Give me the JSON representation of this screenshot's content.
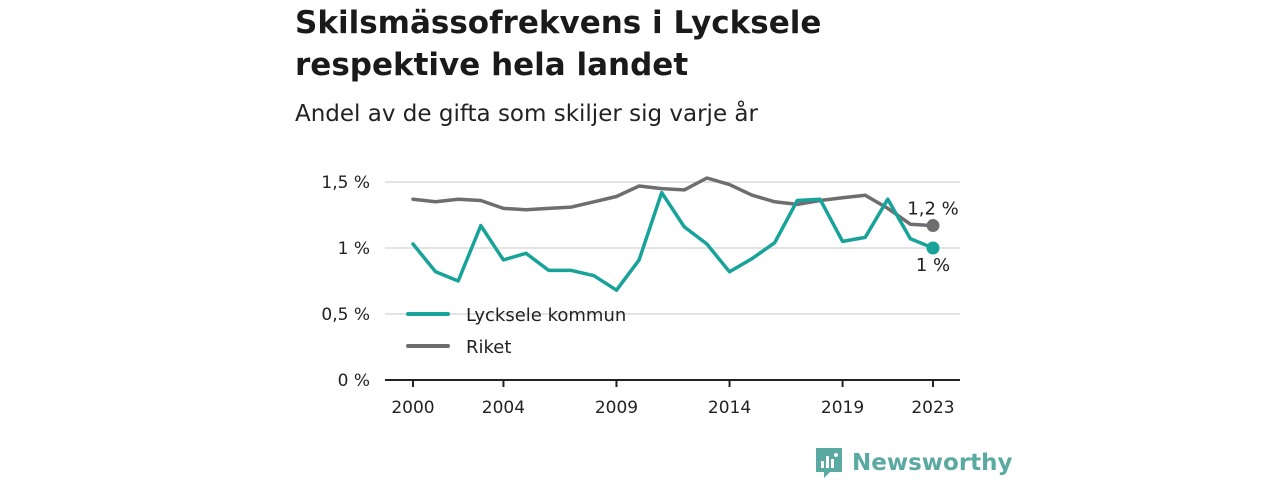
{
  "title": "Skilsmässofrekvens i Lycksele respektive hela landet",
  "subtitle": "Andel av de gifta som skiljer sig varje år",
  "brand": {
    "name": "Newsworthy",
    "icon": "newsworthy-logo-icon",
    "color": "#5aa9a3"
  },
  "chart_data": {
    "type": "line",
    "title": "Skilsmässofrekvens i Lycksele respektive hela landet",
    "subtitle": "Andel av de gifta som skiljer sig varje år",
    "x": [
      2000,
      2001,
      2002,
      2003,
      2004,
      2005,
      2006,
      2007,
      2008,
      2009,
      2010,
      2011,
      2012,
      2013,
      2014,
      2015,
      2016,
      2017,
      2018,
      2019,
      2020,
      2021,
      2022,
      2023
    ],
    "x_ticks": [
      2000,
      2004,
      2009,
      2014,
      2019,
      2023
    ],
    "x_tick_labels": [
      "2000",
      "2004",
      "2009",
      "2014",
      "2019",
      "2023"
    ],
    "y_ticks": [
      0,
      0.5,
      1,
      1.5
    ],
    "y_tick_labels": [
      "0 %",
      "0,5 %",
      "1 %",
      "1,5 %"
    ],
    "ylim": [
      0,
      1.5
    ],
    "grid": true,
    "legend_position": "bottom-left",
    "series": [
      {
        "name": "Lycksele kommun",
        "color": "#18a39a",
        "values": [
          1.03,
          0.82,
          0.75,
          1.17,
          0.91,
          0.96,
          0.83,
          0.83,
          0.79,
          0.68,
          0.91,
          1.42,
          1.16,
          1.03,
          0.82,
          0.92,
          1.04,
          1.36,
          1.37,
          1.05,
          1.08,
          1.37,
          1.07,
          1.0
        ],
        "end_label": "1 %"
      },
      {
        "name": "Riket",
        "color": "#6e6e70",
        "values": [
          1.37,
          1.35,
          1.37,
          1.36,
          1.3,
          1.29,
          1.3,
          1.31,
          1.35,
          1.39,
          1.47,
          1.45,
          1.44,
          1.53,
          1.48,
          1.4,
          1.35,
          1.33,
          1.36,
          1.38,
          1.4,
          1.3,
          1.18,
          1.17
        ],
        "end_label": "1,2 %"
      }
    ]
  }
}
